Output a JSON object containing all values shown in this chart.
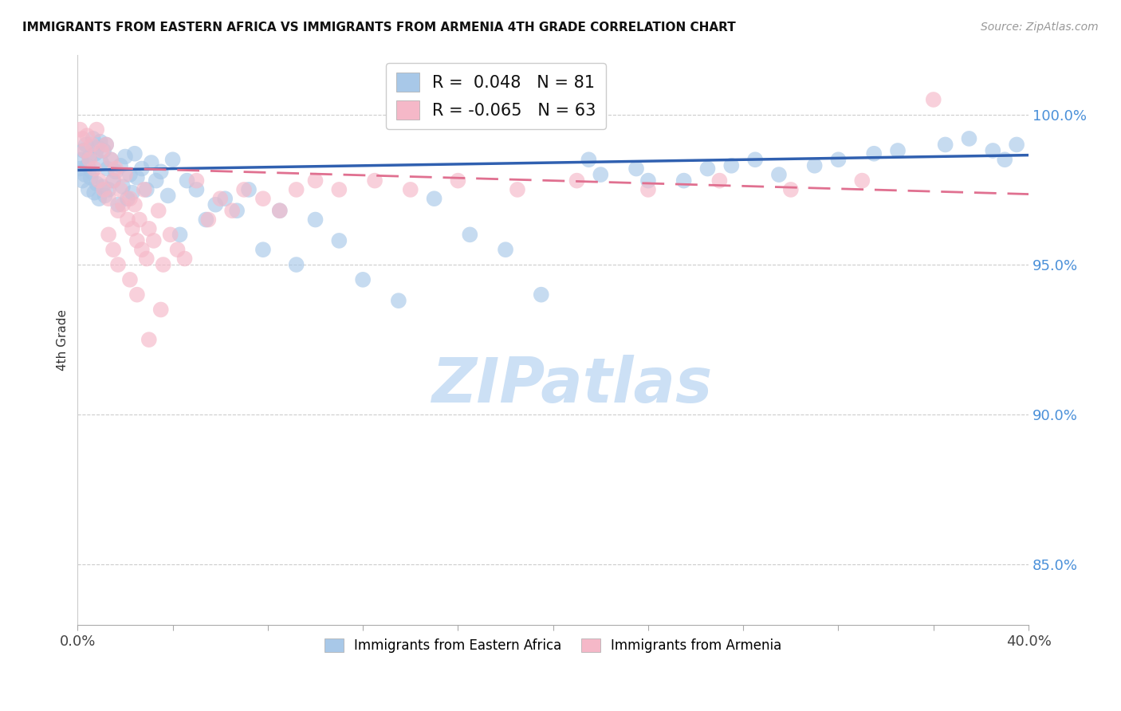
{
  "title": "IMMIGRANTS FROM EASTERN AFRICA VS IMMIGRANTS FROM ARMENIA 4TH GRADE CORRELATION CHART",
  "source": "Source: ZipAtlas.com",
  "xlabel_blue": "Immigrants from Eastern Africa",
  "xlabel_pink": "Immigrants from Armenia",
  "ylabel": "4th Grade",
  "xlim": [
    0.0,
    40.0
  ],
  "ylim": [
    83.0,
    102.0
  ],
  "yticks": [
    85.0,
    90.0,
    95.0,
    100.0
  ],
  "xtick_positions": [
    0.0,
    4.0,
    8.0,
    12.0,
    16.0,
    20.0,
    24.0,
    28.0,
    32.0,
    36.0,
    40.0
  ],
  "xlabel_labels_shown": {
    "0.0": "0.0%",
    "40.0": "40.0%"
  },
  "R_blue": 0.048,
  "N_blue": 81,
  "R_pink": -0.065,
  "N_pink": 63,
  "blue_color": "#a8c8e8",
  "pink_color": "#f5b8c8",
  "blue_line_color": "#3060b0",
  "pink_line_color": "#e07090",
  "blue_trend": [
    0.0,
    40.0,
    98.15,
    98.65
  ],
  "pink_trend": [
    0.0,
    40.0,
    98.25,
    97.35
  ],
  "scatter_blue_x": [
    0.1,
    0.15,
    0.2,
    0.25,
    0.3,
    0.35,
    0.4,
    0.45,
    0.5,
    0.55,
    0.6,
    0.65,
    0.7,
    0.75,
    0.8,
    0.85,
    0.9,
    0.95,
    1.0,
    1.05,
    1.1,
    1.15,
    1.2,
    1.25,
    1.3,
    1.4,
    1.5,
    1.6,
    1.7,
    1.8,
    1.9,
    2.0,
    2.1,
    2.2,
    2.3,
    2.4,
    2.5,
    2.7,
    2.9,
    3.1,
    3.3,
    3.5,
    3.8,
    4.0,
    4.3,
    4.6,
    5.0,
    5.4,
    5.8,
    6.2,
    6.7,
    7.2,
    7.8,
    8.5,
    9.2,
    10.0,
    11.0,
    12.0,
    13.5,
    15.0,
    16.5,
    18.0,
    19.5,
    21.5,
    23.5,
    25.5,
    27.5,
    29.5,
    32.0,
    34.5,
    36.5,
    37.5,
    38.5,
    39.0,
    39.5,
    22.0,
    24.0,
    26.5,
    28.5,
    31.0,
    33.5
  ],
  "scatter_blue_y": [
    98.2,
    98.5,
    97.8,
    98.8,
    98.0,
    99.0,
    98.3,
    97.5,
    98.6,
    97.9,
    98.1,
    99.2,
    97.4,
    98.7,
    97.7,
    98.9,
    97.2,
    99.1,
    98.4,
    97.6,
    98.8,
    97.3,
    99.0,
    98.2,
    97.5,
    98.5,
    97.8,
    98.1,
    97.0,
    98.3,
    97.6,
    98.6,
    97.2,
    98.0,
    97.4,
    98.7,
    97.9,
    98.2,
    97.5,
    98.4,
    97.8,
    98.1,
    97.3,
    98.5,
    96.0,
    97.8,
    97.5,
    96.5,
    97.0,
    97.2,
    96.8,
    97.5,
    95.5,
    96.8,
    95.0,
    96.5,
    95.8,
    94.5,
    93.8,
    97.2,
    96.0,
    95.5,
    94.0,
    98.5,
    98.2,
    97.8,
    98.3,
    98.0,
    98.5,
    98.8,
    99.0,
    99.2,
    98.8,
    98.5,
    99.0,
    98.0,
    97.8,
    98.2,
    98.5,
    98.3,
    98.7
  ],
  "scatter_pink_x": [
    0.1,
    0.2,
    0.3,
    0.4,
    0.5,
    0.6,
    0.7,
    0.8,
    0.9,
    1.0,
    1.1,
    1.2,
    1.3,
    1.4,
    1.5,
    1.6,
    1.7,
    1.8,
    1.9,
    2.0,
    2.1,
    2.2,
    2.3,
    2.4,
    2.5,
    2.6,
    2.7,
    2.8,
    2.9,
    3.0,
    3.2,
    3.4,
    3.6,
    3.9,
    4.2,
    4.5,
    5.0,
    5.5,
    6.0,
    6.5,
    7.0,
    7.8,
    8.5,
    9.2,
    10.0,
    11.0,
    12.5,
    14.0,
    16.0,
    18.5,
    21.0,
    24.0,
    27.0,
    30.0,
    33.0,
    36.0,
    1.3,
    1.5,
    1.7,
    2.2,
    2.5,
    3.0,
    3.5
  ],
  "scatter_pink_y": [
    99.5,
    99.2,
    98.8,
    99.3,
    98.5,
    99.0,
    98.2,
    99.5,
    97.8,
    98.8,
    97.5,
    99.0,
    97.2,
    98.5,
    97.8,
    98.2,
    96.8,
    97.5,
    97.0,
    98.0,
    96.5,
    97.2,
    96.2,
    97.0,
    95.8,
    96.5,
    95.5,
    97.5,
    95.2,
    96.2,
    95.8,
    96.8,
    95.0,
    96.0,
    95.5,
    95.2,
    97.8,
    96.5,
    97.2,
    96.8,
    97.5,
    97.2,
    96.8,
    97.5,
    97.8,
    97.5,
    97.8,
    97.5,
    97.8,
    97.5,
    97.8,
    97.5,
    97.8,
    97.5,
    97.8,
    100.5,
    96.0,
    95.5,
    95.0,
    94.5,
    94.0,
    92.5,
    93.5
  ],
  "watermark_text": "ZIPatlas",
  "watermark_color": "#cce0f5",
  "background_color": "#ffffff",
  "grid_color": "#cccccc"
}
